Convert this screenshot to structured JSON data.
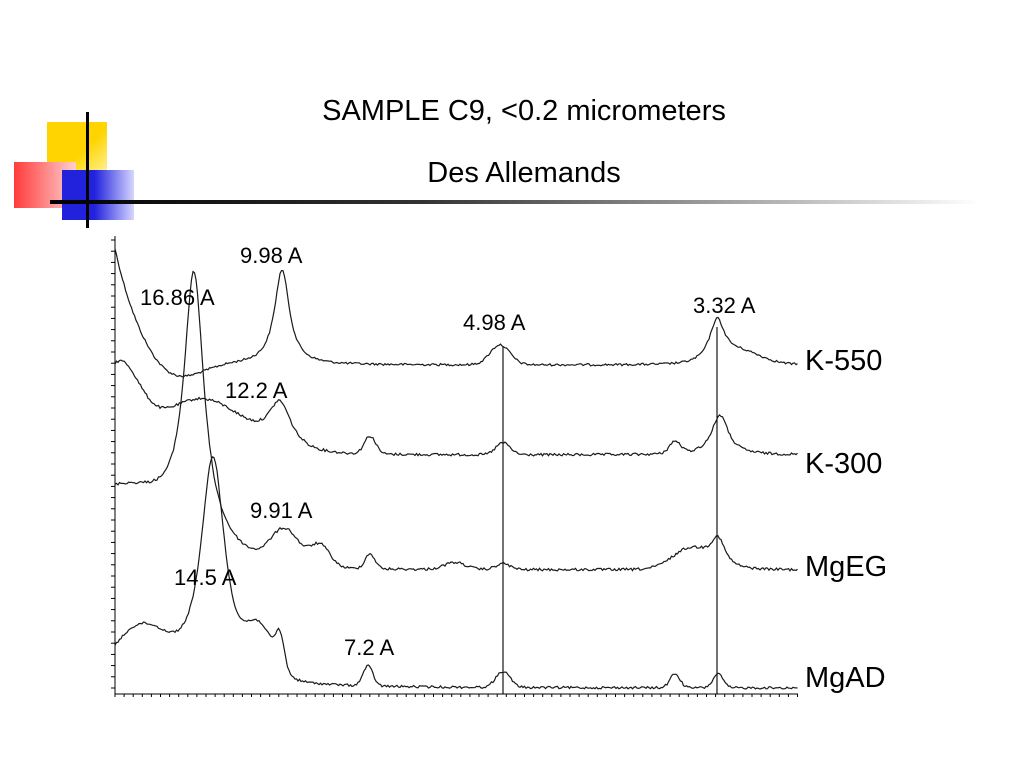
{
  "title": "SAMPLE C9, <0.2 micrometers",
  "subtitle": "Des Allemands",
  "colors": {
    "accent_yellow": "#FFD400",
    "accent_red": "#FF3B3B",
    "accent_blue": "#2222DD",
    "line": "#000000"
  },
  "chart_data": {
    "type": "line",
    "series": [
      {
        "name": "K-550",
        "peaks": [
          "9.98 A",
          "4.98 A",
          "3.32 A"
        ]
      },
      {
        "name": "K-300",
        "peaks": [
          "12.2 A"
        ]
      },
      {
        "name": "MgEG",
        "peaks": [
          "16.86 A",
          "9.91 A"
        ]
      },
      {
        "name": "MgAD",
        "peaks": [
          "14.5 A",
          "7.2 A"
        ]
      }
    ],
    "peak_labels": [
      "9.98 A",
      "16.86 A",
      "3.32 A",
      "4.98 A",
      "12.2 A",
      "9.91 A",
      "14.5 A",
      "7.2 A"
    ],
    "reference_lines": [
      "4.98 A",
      "3.32 A"
    ],
    "grid": false
  }
}
